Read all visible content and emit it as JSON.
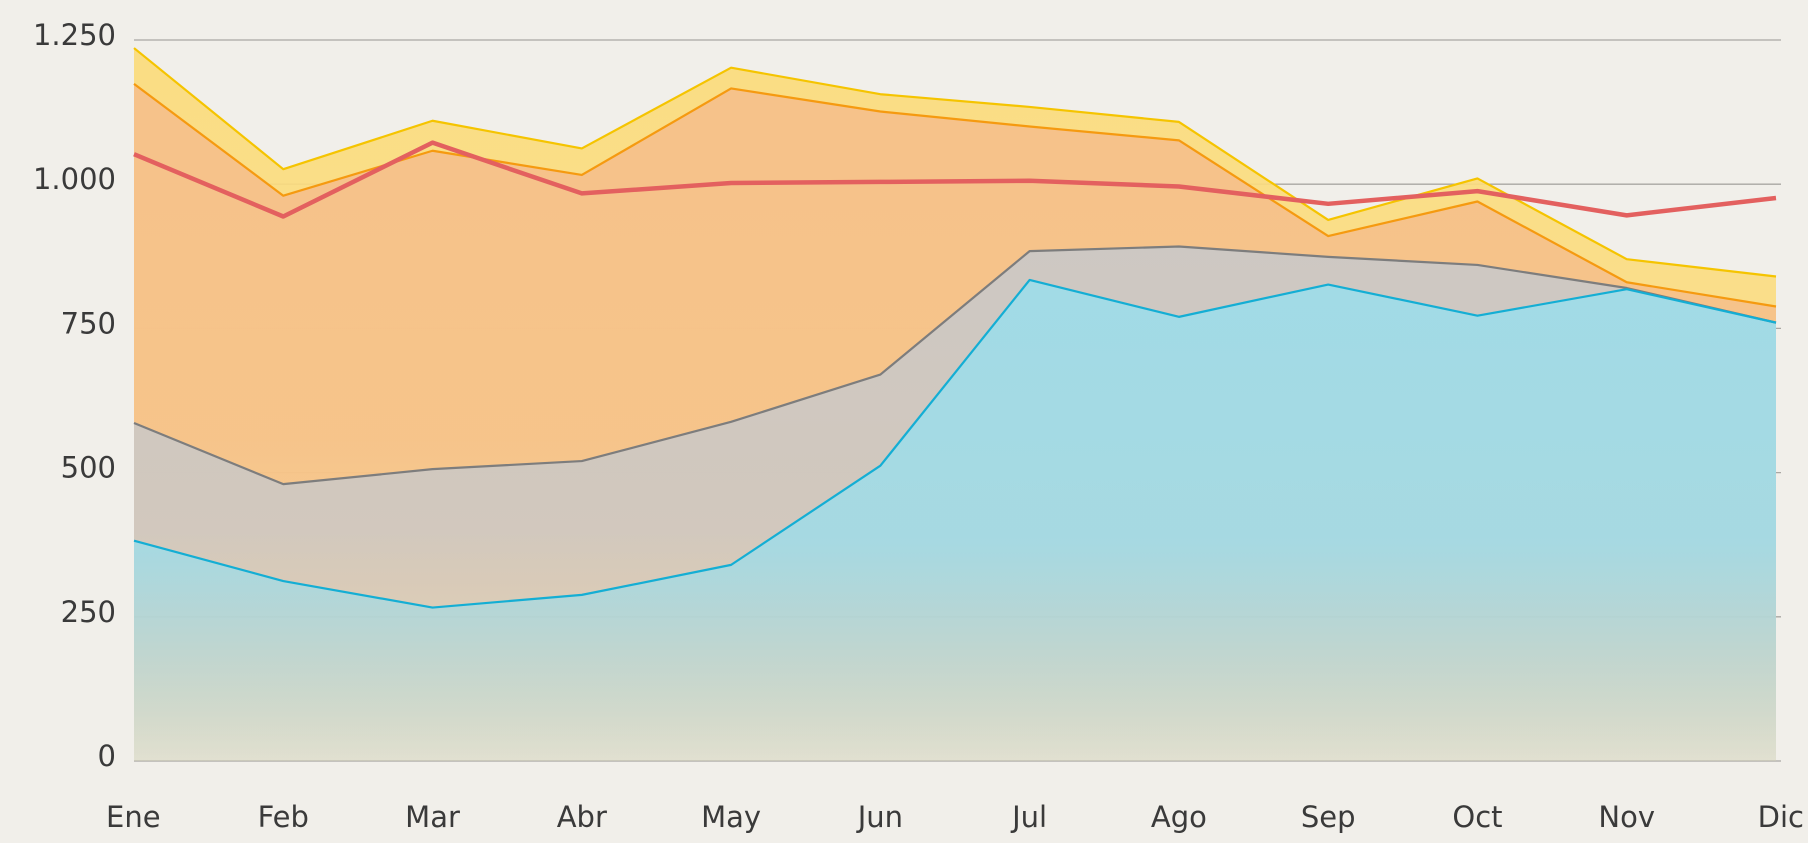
{
  "chart_data": {
    "type": "area",
    "categories": [
      "Ene",
      "Feb",
      "Mar",
      "Abr",
      "May",
      "Jun",
      "Jul",
      "Ago",
      "Sep",
      "Oct",
      "Nov",
      "Dic"
    ],
    "series": [
      {
        "color": "#f5c400",
        "fill": "#fbdc7e",
        "area": true,
        "values": [
          1236,
          1026,
          1110,
          1062,
          1202,
          1156,
          1134,
          1108,
          938,
          1010,
          870,
          840
        ]
      },
      {
        "color": "#f59a10",
        "fill": "#f6c08a",
        "area": true,
        "values": [
          1174,
          980,
          1058,
          1016,
          1166,
          1126,
          1100,
          1076,
          910,
          970,
          830,
          788
        ]
      },
      {
        "color": "#7d7d7d",
        "fill": "#cbc8c6",
        "area": true,
        "values": [
          586,
          480,
          506,
          520,
          588,
          670,
          884,
          892,
          874,
          860,
          820,
          760
        ]
      },
      {
        "color": "#14aed4",
        "fill": "#9fdce8",
        "area": true,
        "values": [
          382,
          312,
          266,
          288,
          340,
          512,
          834,
          770,
          826,
          772,
          818,
          760
        ]
      },
      {
        "color": "#e3605f",
        "area": false,
        "values": [
          1052,
          944,
          1072,
          984,
          1002,
          1004,
          1006,
          996,
          966,
          988,
          946,
          976
        ]
      }
    ],
    "ylim": [
      0,
      1250
    ],
    "yticks": [
      0,
      250,
      500,
      750,
      {
        "value": 1000,
        "label": "1.000"
      },
      {
        "value": 1250,
        "label": "1.250"
      }
    ],
    "grid": true
  }
}
